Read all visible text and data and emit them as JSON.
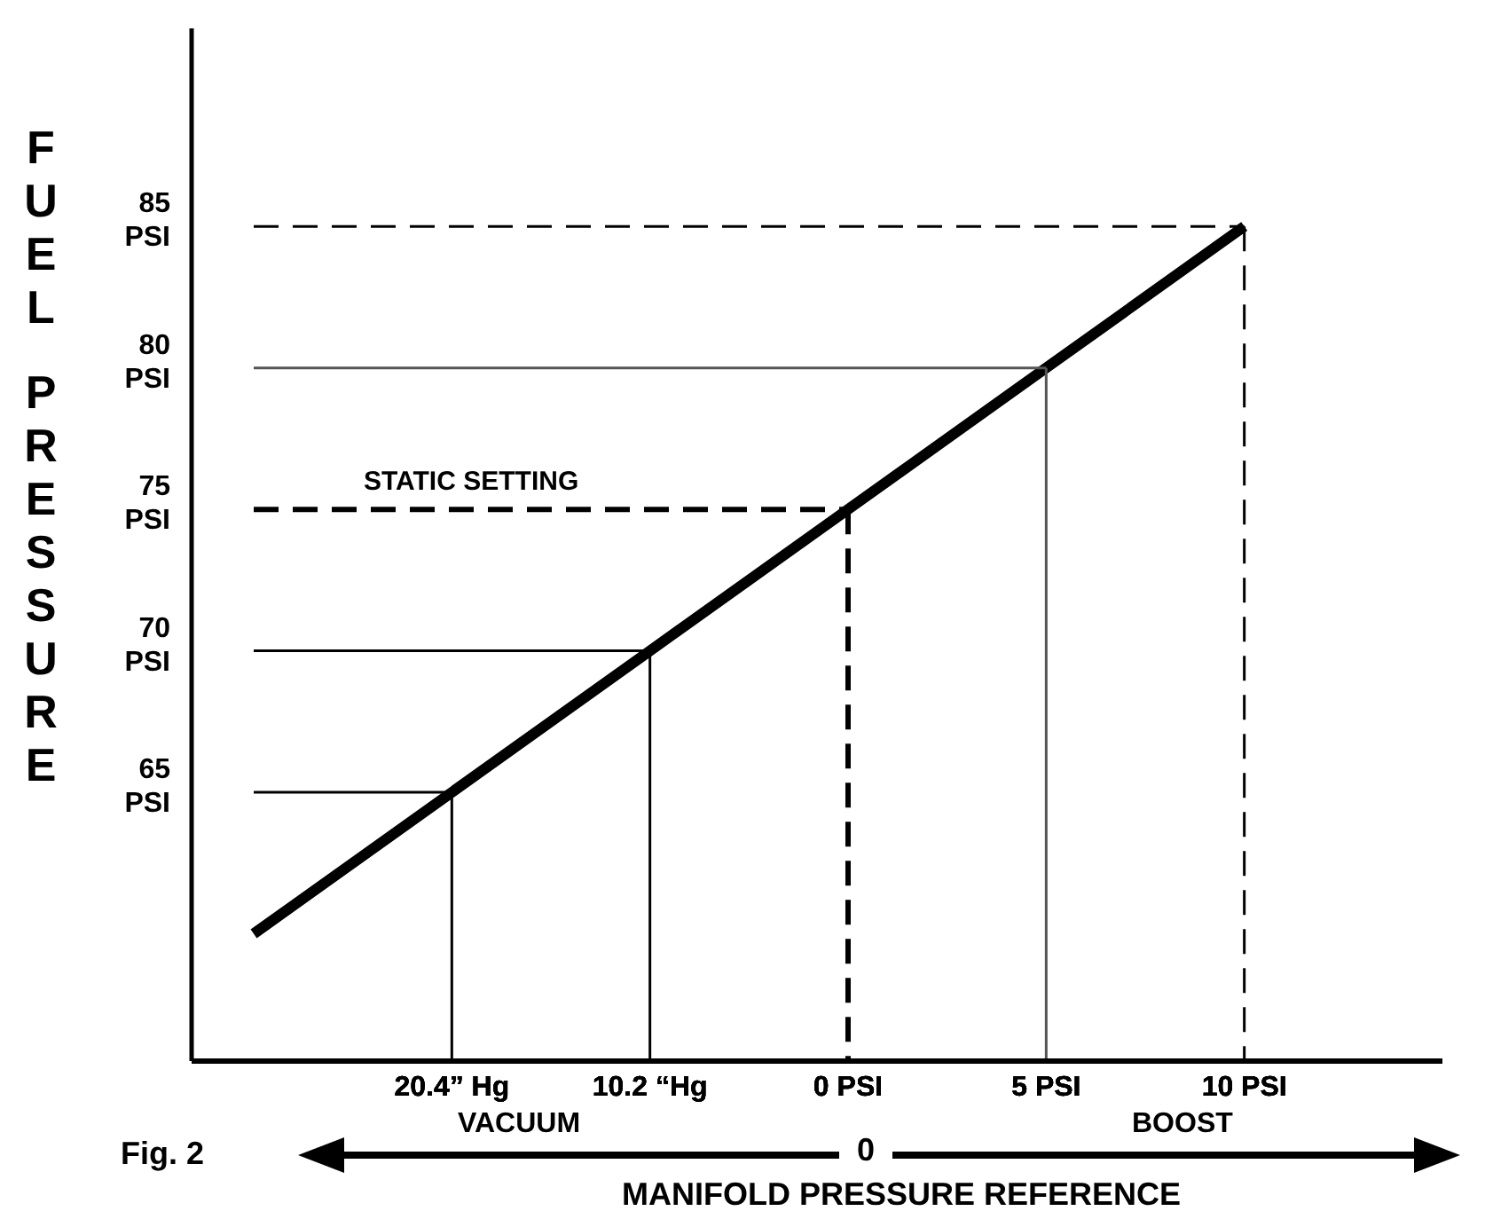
{
  "chart_data": {
    "type": "line",
    "xlabel": "MANIFOLD PRESSURE REFERENCE",
    "ylabel": "FUEL PRESSURE",
    "categories": [
      null,
      "20.4” Hg",
      "10.2 “Hg",
      "0 PSI",
      "5 PSI",
      "10 PSI",
      null
    ],
    "ylim": [
      55.5,
      92
    ],
    "yticks": [
      {
        "value": 65,
        "label": "65 PSI"
      },
      {
        "value": 70,
        "label": "70 PSI"
      },
      {
        "value": 75,
        "label": "75 PSI"
      },
      {
        "value": 80,
        "label": "80 PSI"
      },
      {
        "value": 85,
        "label": "85 PSI"
      }
    ],
    "grid": false,
    "legend": false,
    "marker": "none",
    "series": [
      {
        "color": "#000000",
        "values": [
          60,
          65,
          70,
          75,
          80,
          85,
          null
        ],
        "line_style": "solid"
      },
      {
        "color": "#000000",
        "values": [
          65,
          65,
          null,
          null,
          null,
          null,
          null
        ],
        "line_style": "solid"
      },
      {
        "color": "#000000",
        "x": [
          "20.4” Hg",
          "20.4” Hg"
        ],
        "values": [
          65,
          55.5
        ],
        "line_style": "solid"
      },
      {
        "color": "#000000",
        "values": [
          70,
          null,
          70,
          null,
          null,
          null,
          null
        ],
        "line_style": "solid"
      },
      {
        "color": "#000000",
        "x": [
          "10.2 “Hg",
          "10.2 “Hg"
        ],
        "values": [
          70,
          55.5
        ],
        "line_style": "solid"
      },
      {
        "color": "#000000",
        "values": [
          75,
          null,
          null,
          75,
          null,
          null,
          null
        ],
        "line_style": "dashed"
      },
      {
        "color": "#000000",
        "x": [
          "0 PSI",
          "0 PSI"
        ],
        "values": [
          75,
          55.5
        ],
        "line_style": "dashed"
      },
      {
        "color": "#555555",
        "values": [
          80,
          null,
          null,
          null,
          80,
          null,
          null
        ],
        "line_style": "solid"
      },
      {
        "color": "#555555",
        "x": [
          "5 PSI",
          "5 PSI"
        ],
        "values": [
          80,
          55.5
        ],
        "line_style": "solid"
      },
      {
        "color": "#000000",
        "values": [
          85,
          null,
          null,
          null,
          null,
          85,
          null
        ],
        "line_style": "dashed"
      },
      {
        "color": "#000000",
        "x": [
          "10 PSI",
          "10 PSI"
        ],
        "values": [
          85,
          55.5
        ],
        "line_style": "dashed"
      }
    ],
    "annotations": [
      "STATIC SETTING",
      "Fig. 2",
      "VACUUM",
      "0",
      "BOOST"
    ]
  }
}
